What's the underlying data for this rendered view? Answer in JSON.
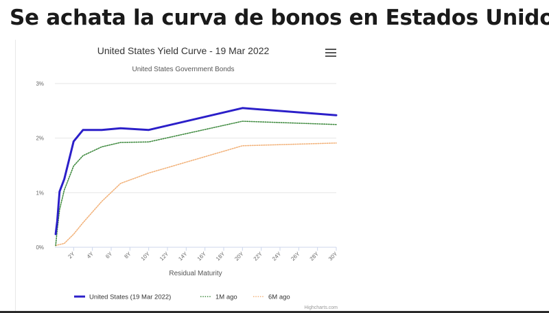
{
  "headline": "Se achata la curva de bonos en Estados Unidos",
  "credit": "Highcharts.com",
  "chart_data": {
    "type": "line",
    "title": "United States Yield Curve - 19 Mar 2022",
    "subtitle": "United States Government Bonds",
    "xlabel": "Residual Maturity",
    "ylabel": "",
    "x_unit": "years",
    "x_ticks": [
      "2Y",
      "4Y",
      "6Y",
      "8Y",
      "10Y",
      "12Y",
      "14Y",
      "16Y",
      "18Y",
      "20Y",
      "22Y",
      "24Y",
      "26Y",
      "28Y",
      "30Y"
    ],
    "y_ticks": [
      "0%",
      "1%",
      "2%",
      "3%"
    ],
    "xlim": [
      0,
      30
    ],
    "ylim": [
      0,
      3
    ],
    "grid": true,
    "legend_position": "bottom",
    "series": [
      {
        "name": "United States (19 Mar 2022)",
        "color": "#2b1fc9",
        "style": "solid",
        "x": [
          0.083,
          0.25,
          0.5,
          1,
          2,
          3,
          5,
          7,
          10,
          20,
          30
        ],
        "y": [
          0.24,
          0.48,
          1.02,
          1.25,
          1.94,
          2.15,
          2.15,
          2.18,
          2.15,
          2.55,
          2.42
        ]
      },
      {
        "name": "1M ago",
        "color": "#3f8a3f",
        "style": "dotted",
        "x": [
          0.083,
          0.25,
          0.5,
          1,
          2,
          3,
          5,
          7,
          10,
          20,
          30
        ],
        "y": [
          0.03,
          0.32,
          0.69,
          1.05,
          1.49,
          1.68,
          1.84,
          1.92,
          1.93,
          2.31,
          2.25
        ]
      },
      {
        "name": "6M ago",
        "color": "#f2b27a",
        "style": "dotted",
        "x": [
          0.083,
          0.25,
          0.5,
          1,
          2,
          3,
          5,
          7,
          10,
          20,
          30
        ],
        "y": [
          0.03,
          0.04,
          0.05,
          0.07,
          0.24,
          0.45,
          0.84,
          1.17,
          1.36,
          1.86,
          1.91
        ]
      }
    ]
  }
}
